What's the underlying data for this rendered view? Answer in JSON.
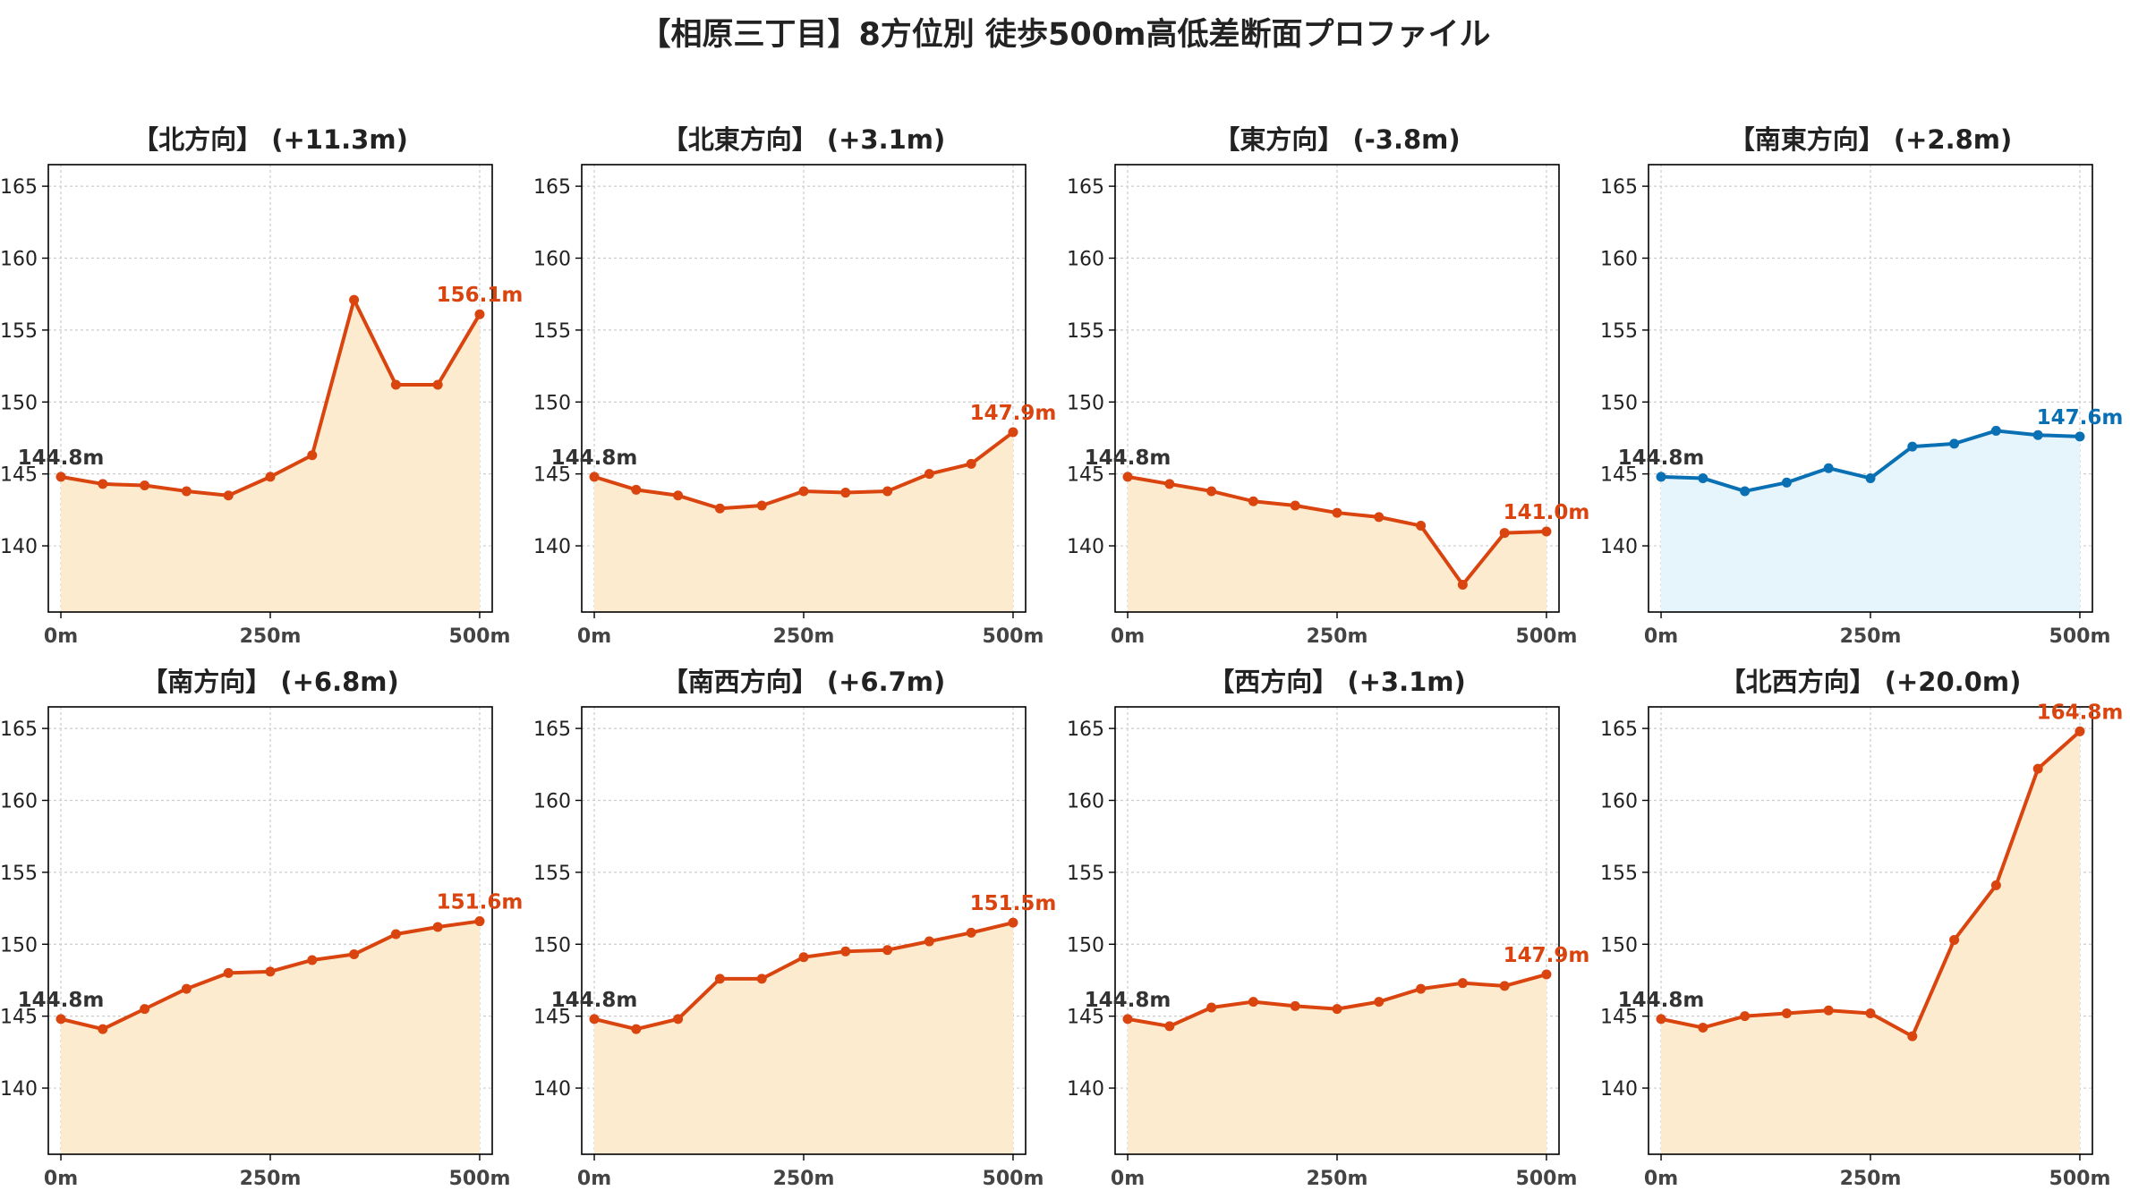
{
  "title": "【相原三丁目】8方位別 徒歩500m高低差断面プロファイル",
  "colors": {
    "rise_line": "#d9440f",
    "rise_fill": "#fdebcf",
    "fall_line": "#0a70b4",
    "fall_fill": "#e6f4fc",
    "grid": "#cccccc",
    "start_label": "#333333"
  },
  "chart_data": [
    {
      "type": "area",
      "title": "【北方向】 (+11.3m)",
      "color": "rise",
      "x": [
        0,
        50,
        100,
        150,
        200,
        250,
        300,
        350,
        400,
        450,
        500
      ],
      "y": [
        144.8,
        144.3,
        144.2,
        143.8,
        143.5,
        144.8,
        146.3,
        157.1,
        151.2,
        151.2,
        156.1
      ],
      "start_label": "144.8m",
      "end_label": "156.1m",
      "ylim": [
        135.4,
        166.5
      ],
      "yticks": [
        "140",
        "145",
        "150",
        "155",
        "160",
        "165"
      ],
      "xticks": [
        "0m",
        "250m",
        "500m"
      ],
      "xlim": [
        -15,
        515
      ],
      "grid": true
    },
    {
      "type": "area",
      "title": "【北東方向】 (+3.1m)",
      "color": "rise",
      "x": [
        0,
        50,
        100,
        150,
        200,
        250,
        300,
        350,
        400,
        450,
        500
      ],
      "y": [
        144.8,
        143.9,
        143.5,
        142.6,
        142.8,
        143.8,
        143.7,
        143.8,
        145.0,
        145.7,
        147.9
      ],
      "start_label": "144.8m",
      "end_label": "147.9m",
      "ylim": [
        135.4,
        166.5
      ],
      "yticks": [
        "140",
        "145",
        "150",
        "155",
        "160",
        "165"
      ],
      "xticks": [
        "0m",
        "250m",
        "500m"
      ],
      "xlim": [
        -15,
        515
      ],
      "grid": true
    },
    {
      "type": "area",
      "title": "【東方向】 (-3.8m)",
      "color": "rise",
      "x": [
        0,
        50,
        100,
        150,
        200,
        250,
        300,
        350,
        400,
        450,
        500
      ],
      "y": [
        144.8,
        144.3,
        143.8,
        143.1,
        142.8,
        142.3,
        142.0,
        141.4,
        137.3,
        140.9,
        141.0
      ],
      "start_label": "144.8m",
      "end_label": "141.0m",
      "ylim": [
        135.4,
        166.5
      ],
      "yticks": [
        "140",
        "145",
        "150",
        "155",
        "160",
        "165"
      ],
      "xticks": [
        "0m",
        "250m",
        "500m"
      ],
      "xlim": [
        -15,
        515
      ],
      "grid": true
    },
    {
      "type": "area",
      "title": "【南東方向】 (+2.8m)",
      "color": "fall",
      "x": [
        0,
        50,
        100,
        150,
        200,
        250,
        300,
        350,
        400,
        450,
        500
      ],
      "y": [
        144.8,
        144.7,
        143.8,
        144.4,
        145.4,
        144.7,
        146.9,
        147.1,
        148.0,
        147.7,
        147.6
      ],
      "start_label": "144.8m",
      "end_label": "147.6m",
      "ylim": [
        135.4,
        166.5
      ],
      "yticks": [
        "140",
        "145",
        "150",
        "155",
        "160",
        "165"
      ],
      "xticks": [
        "0m",
        "250m",
        "500m"
      ],
      "xlim": [
        -15,
        515
      ],
      "grid": true
    },
    {
      "type": "area",
      "title": "【南方向】 (+6.8m)",
      "color": "rise",
      "x": [
        0,
        50,
        100,
        150,
        200,
        250,
        300,
        350,
        400,
        450,
        500
      ],
      "y": [
        144.8,
        144.1,
        145.5,
        146.9,
        148.0,
        148.1,
        148.9,
        149.3,
        150.7,
        151.2,
        151.6
      ],
      "start_label": "144.8m",
      "end_label": "151.6m",
      "ylim": [
        135.4,
        166.5
      ],
      "yticks": [
        "140",
        "145",
        "150",
        "155",
        "160",
        "165"
      ],
      "xticks": [
        "0m",
        "250m",
        "500m"
      ],
      "xlim": [
        -15,
        515
      ],
      "grid": true
    },
    {
      "type": "area",
      "title": "【南西方向】 (+6.7m)",
      "color": "rise",
      "x": [
        0,
        50,
        100,
        150,
        200,
        250,
        300,
        350,
        400,
        450,
        500
      ],
      "y": [
        144.8,
        144.1,
        144.8,
        147.6,
        147.6,
        149.1,
        149.5,
        149.6,
        150.2,
        150.8,
        151.5
      ],
      "start_label": "144.8m",
      "end_label": "151.5m",
      "ylim": [
        135.4,
        166.5
      ],
      "yticks": [
        "140",
        "145",
        "150",
        "155",
        "160",
        "165"
      ],
      "xticks": [
        "0m",
        "250m",
        "500m"
      ],
      "xlim": [
        -15,
        515
      ],
      "grid": true
    },
    {
      "type": "area",
      "title": "【西方向】 (+3.1m)",
      "color": "rise",
      "x": [
        0,
        50,
        100,
        150,
        200,
        250,
        300,
        350,
        400,
        450,
        500
      ],
      "y": [
        144.8,
        144.3,
        145.6,
        146.0,
        145.7,
        145.5,
        146.0,
        146.9,
        147.3,
        147.1,
        147.9
      ],
      "start_label": "144.8m",
      "end_label": "147.9m",
      "ylim": [
        135.4,
        166.5
      ],
      "yticks": [
        "140",
        "145",
        "150",
        "155",
        "160",
        "165"
      ],
      "xticks": [
        "0m",
        "250m",
        "500m"
      ],
      "xlim": [
        -15,
        515
      ],
      "grid": true
    },
    {
      "type": "area",
      "title": "【北西方向】 (+20.0m)",
      "color": "rise",
      "x": [
        0,
        50,
        100,
        150,
        200,
        250,
        300,
        350,
        400,
        450,
        500
      ],
      "y": [
        144.8,
        144.2,
        145.0,
        145.2,
        145.4,
        145.2,
        143.6,
        150.3,
        154.1,
        162.2,
        164.8
      ],
      "start_label": "144.8m",
      "end_label": "164.8m",
      "ylim": [
        135.4,
        166.5
      ],
      "yticks": [
        "140",
        "145",
        "150",
        "155",
        "160",
        "165"
      ],
      "xticks": [
        "0m",
        "250m",
        "500m"
      ],
      "xlim": [
        -15,
        515
      ],
      "grid": true
    }
  ]
}
